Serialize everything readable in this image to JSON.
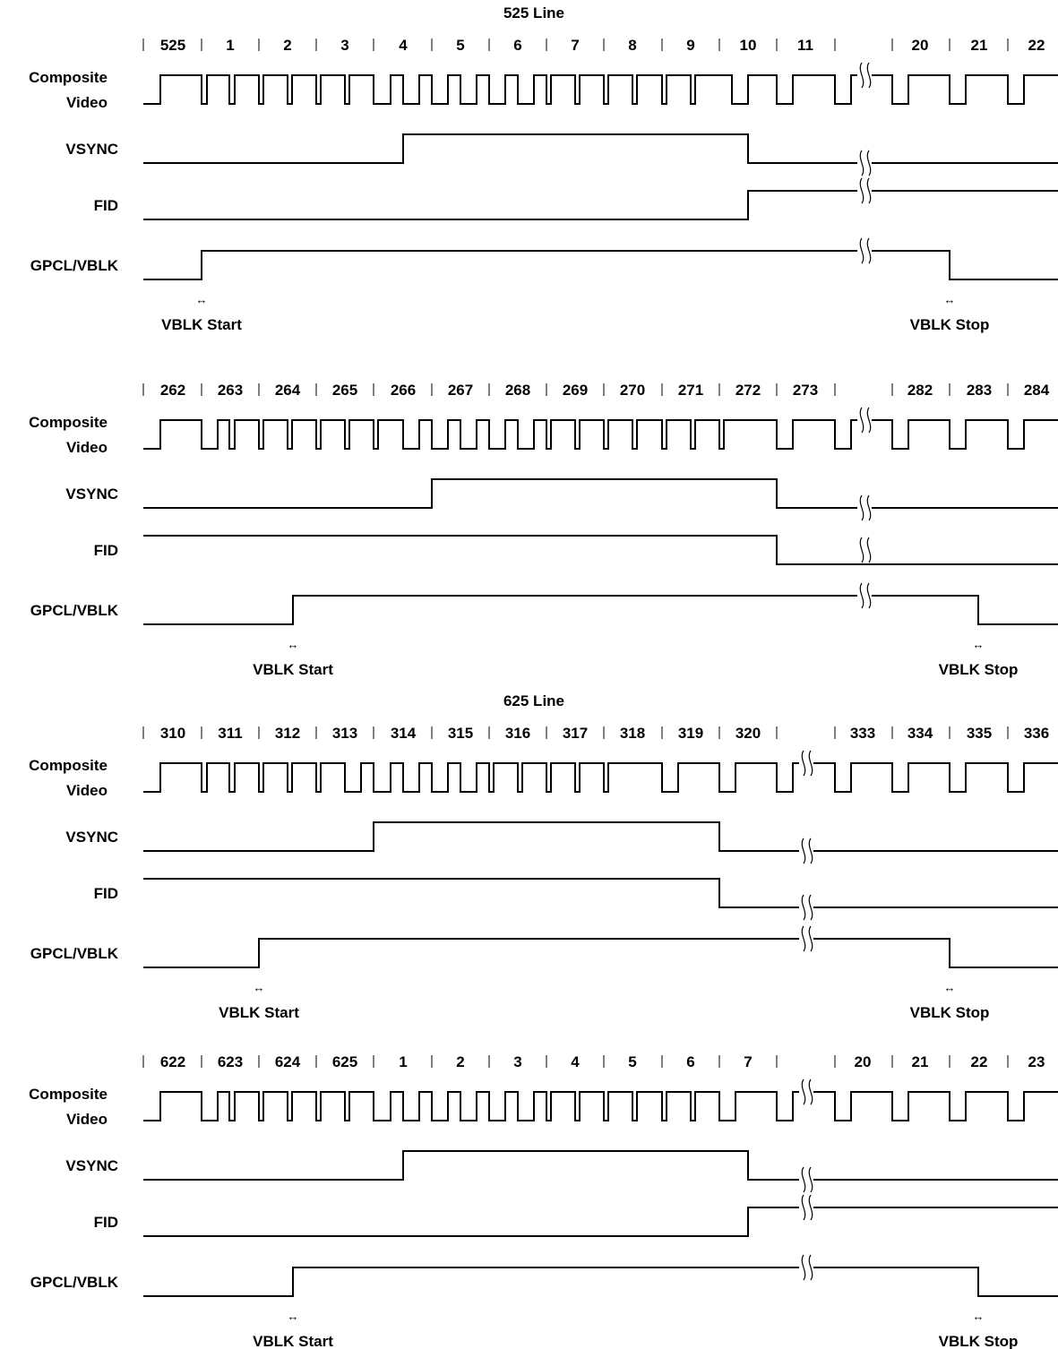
{
  "groups": [
    {
      "title": "525 Line",
      "line_numbers": [
        "525",
        "1",
        "2",
        "3",
        "4",
        "5",
        "6",
        "7",
        "8",
        "9",
        "10",
        "11",
        "20",
        "21",
        "22"
      ],
      "signal_labels": [
        "Composite\nVideo",
        "VSYNC",
        "FID",
        "GPCL/VBLK"
      ],
      "annotations": {
        "start": "VBLK Start",
        "stop": "VBLK Stop",
        "arrow": "↔"
      }
    },
    {
      "title": "",
      "line_numbers": [
        "262",
        "263",
        "264",
        "265",
        "266",
        "267",
        "268",
        "269",
        "270",
        "271",
        "272",
        "273",
        "282",
        "283",
        "284"
      ],
      "signal_labels": [
        "Composite\nVideo",
        "VSYNC",
        "FID",
        "GPCL/VBLK"
      ],
      "annotations": {
        "start": "VBLK Start",
        "stop": "VBLK Stop",
        "arrow": "↔"
      }
    },
    {
      "title": "625 Line",
      "line_numbers": [
        "310",
        "311",
        "312",
        "313",
        "314",
        "315",
        "316",
        "317",
        "318",
        "319",
        "320",
        "333",
        "334",
        "335",
        "336"
      ],
      "signal_labels": [
        "Composite\nVideo",
        "VSYNC",
        "FID",
        "GPCL/VBLK"
      ],
      "annotations": {
        "start": "VBLK Start",
        "stop": "VBLK Stop",
        "arrow": "↔"
      }
    },
    {
      "title": "",
      "line_numbers": [
        "622",
        "623",
        "624",
        "625",
        "1",
        "2",
        "3",
        "4",
        "5",
        "6",
        "7",
        "20",
        "21",
        "22",
        "23"
      ],
      "signal_labels": [
        "Composite\nVideo",
        "VSYNC",
        "FID",
        "GPCL/VBLK"
      ],
      "annotations": {
        "start": "VBLK Start",
        "stop": "VBLK Stop",
        "arrow": "↔"
      }
    }
  ]
}
